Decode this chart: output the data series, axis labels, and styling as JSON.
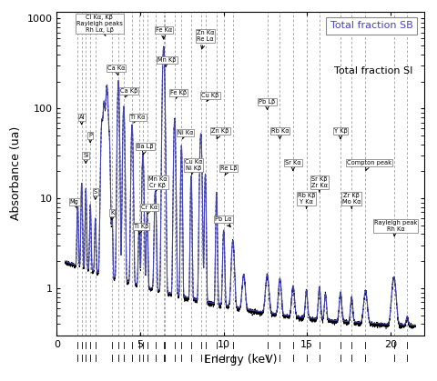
{
  "xlabel": "Energy (keV)",
  "ylabel": "Absorbance (ua)",
  "xmin": 0,
  "xmax": 22,
  "ymin": 0.3,
  "ymax": 1200,
  "legend_SB": "Total fraction SB",
  "legend_SI": "Total fraction SI",
  "color_SB": "#4444BB",
  "color_SI": "#000000",
  "vlines": [
    1.25,
    1.49,
    1.74,
    2.01,
    2.31,
    3.31,
    3.69,
    4.01,
    4.51,
    4.93,
    5.16,
    5.41,
    5.9,
    6.4,
    6.49,
    7.06,
    7.47,
    8.05,
    8.63,
    8.9,
    9.57,
    10.0,
    10.55,
    12.61,
    13.37,
    14.16,
    14.96,
    15.74,
    17.0,
    17.67,
    18.5,
    20.2,
    21.0
  ],
  "annots": [
    [
      "Cl Kα, Kβ\nRayleigh peaks\nRh Lα, Lβ",
      2.55,
      700,
      3.0,
      600,
      "center",
      "bottom"
    ],
    [
      "Ca Kα",
      3.55,
      260,
      3.69,
      230,
      "center",
      "bottom"
    ],
    [
      "Ca Kβ",
      4.3,
      145,
      4.01,
      125,
      "center",
      "bottom"
    ],
    [
      "Ti Kα",
      4.85,
      75,
      4.51,
      65,
      "center",
      "bottom"
    ],
    [
      "Fe Kα",
      6.4,
      700,
      6.4,
      540,
      "center",
      "bottom"
    ],
    [
      "Mn Kβ",
      6.6,
      320,
      6.49,
      270,
      "center",
      "bottom"
    ],
    [
      "Fe Kβ",
      7.3,
      140,
      7.06,
      120,
      "center",
      "bottom"
    ],
    [
      "Zn Kα\nRe Lα",
      8.9,
      550,
      8.63,
      420,
      "center",
      "bottom"
    ],
    [
      "Cu Kβ",
      9.2,
      130,
      8.9,
      112,
      "center",
      "bottom"
    ],
    [
      "Ni Kα",
      7.7,
      50,
      7.47,
      43,
      "center",
      "bottom"
    ],
    [
      "Cu Kα\nNi Kβ",
      8.2,
      20,
      8.05,
      17,
      "center",
      "bottom"
    ],
    [
      "Re Lβ",
      10.3,
      20,
      10.0,
      17,
      "center",
      "bottom"
    ],
    [
      "Zn Kβ",
      9.8,
      52,
      9.57,
      45,
      "center",
      "bottom"
    ],
    [
      "Pb Lα",
      10.0,
      5.5,
      10.55,
      4.5,
      "center",
      "bottom"
    ],
    [
      "Pb Lβ",
      12.61,
      110,
      12.61,
      95,
      "center",
      "bottom"
    ],
    [
      "Rb Kα",
      13.37,
      52,
      13.37,
      45,
      "center",
      "bottom"
    ],
    [
      "Sr Kα",
      14.16,
      23,
      14.16,
      20,
      "center",
      "bottom"
    ],
    [
      "Rb Kβ\nY Kα",
      14.96,
      8.5,
      14.96,
      7.2,
      "center",
      "bottom"
    ],
    [
      "Sr Kβ\nZr Kα",
      15.74,
      13,
      15.74,
      11,
      "center",
      "bottom"
    ],
    [
      "Y Kβ",
      17.0,
      52,
      17.0,
      45,
      "center",
      "bottom"
    ],
    [
      "Compton peak",
      18.7,
      23,
      18.5,
      20,
      "center",
      "bottom"
    ],
    [
      "Zr Kβ\nMo Kα",
      17.67,
      8.5,
      17.67,
      7.2,
      "center",
      "bottom"
    ],
    [
      "Rayleigh peak\nRh Kα",
      20.3,
      4.2,
      20.2,
      3.5,
      "center",
      "bottom"
    ],
    [
      "Al",
      1.49,
      75,
      1.49,
      65,
      "center",
      "bottom"
    ],
    [
      "P",
      2.01,
      47,
      2.01,
      41,
      "center",
      "bottom"
    ],
    [
      "Si",
      1.74,
      28,
      1.74,
      24,
      "center",
      "bottom"
    ],
    [
      "S",
      2.31,
      11,
      2.31,
      9.5,
      "center",
      "bottom"
    ],
    [
      "Mg",
      1.05,
      8.5,
      1.25,
      7.3,
      "center",
      "bottom"
    ],
    [
      "K",
      3.31,
      6.5,
      3.31,
      5.6,
      "center",
      "bottom"
    ],
    [
      "Ba Lβ",
      5.3,
      35,
      5.16,
      30,
      "center",
      "bottom"
    ],
    [
      "Mn Kα\nCr Kβ",
      6.05,
      13,
      5.9,
      11,
      "center",
      "bottom"
    ],
    [
      "Cr Kα",
      5.55,
      7.5,
      5.41,
      6.5,
      "center",
      "bottom"
    ],
    [
      "Ti Kβ",
      5.05,
      4.5,
      4.93,
      3.9,
      "center",
      "bottom"
    ]
  ]
}
